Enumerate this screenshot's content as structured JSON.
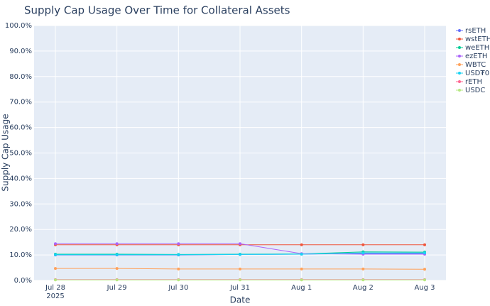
{
  "chart_data": {
    "type": "line",
    "title": "Supply Cap Usage Over Time for Collateral Assets",
    "x_label": "Date",
    "y_label": "Supply Cap Usage",
    "x": [
      "2025-07-28",
      "2025-07-29",
      "2025-07-30",
      "2025-07-31",
      "2025-08-01",
      "2025-08-02",
      "2025-08-03"
    ],
    "xticks": [
      {
        "value": "2025-07-28",
        "label": "Jul 28"
      },
      {
        "value": "2025-07-29",
        "label": "Jul 29"
      },
      {
        "value": "2025-07-30",
        "label": "Jul 30"
      },
      {
        "value": "2025-07-31",
        "label": "Jul 31"
      },
      {
        "value": "2025-08-01",
        "label": "Aug 1"
      },
      {
        "value": "2025-08-02",
        "label": "Aug 2"
      },
      {
        "value": "2025-08-03",
        "label": "Aug 3"
      }
    ],
    "x_year_label": "2025",
    "ylim": [
      0,
      100
    ],
    "yticks": [
      {
        "value": 0,
        "label": "0.0%"
      },
      {
        "value": 10,
        "label": "10.0%"
      },
      {
        "value": 20,
        "label": "20.0%"
      },
      {
        "value": 30,
        "label": "30.0%"
      },
      {
        "value": 40,
        "label": "40.0%"
      },
      {
        "value": 50,
        "label": "50.0%"
      },
      {
        "value": 60,
        "label": "60.0%"
      },
      {
        "value": 70,
        "label": "70.0%"
      },
      {
        "value": 80,
        "label": "80.0%"
      },
      {
        "value": 90,
        "label": "90.0%"
      },
      {
        "value": 100,
        "label": "100.0%"
      }
    ],
    "grid": true,
    "legend": "right",
    "series": [
      {
        "name": "rsETH",
        "color": "#636efa",
        "values": [
          10.0,
          10.0,
          10.0,
          10.2,
          10.3,
          10.6,
          10.6
        ]
      },
      {
        "name": "wstETH",
        "color": "#EF553B",
        "values": [
          14.0,
          14.0,
          14.0,
          14.0,
          14.0,
          14.0,
          14.0
        ]
      },
      {
        "name": "weETH",
        "color": "#00cc96",
        "values": [
          10.3,
          10.3,
          10.2,
          10.3,
          10.4,
          11.2,
          11.1
        ]
      },
      {
        "name": "ezETH",
        "color": "#ab63fa",
        "values": [
          14.4,
          14.4,
          14.4,
          14.4,
          10.5,
          10.3,
          10.3
        ]
      },
      {
        "name": "WBTC",
        "color": "#FFA15A",
        "values": [
          4.7,
          4.7,
          4.5,
          4.5,
          4.5,
          4.5,
          4.4
        ]
      },
      {
        "name": "USD₮0",
        "color": "#19d3f3",
        "values": [
          10.1,
          10.1,
          10.1,
          10.2,
          10.3,
          10.8,
          10.8
        ]
      },
      {
        "name": "rETH",
        "color": "#FF6692",
        "values": [
          0.3,
          0.3,
          0.3,
          0.3,
          0.3,
          0.3,
          0.3
        ]
      },
      {
        "name": "USDC",
        "color": "#B6E880",
        "values": [
          0.2,
          0.2,
          0.2,
          0.2,
          0.2,
          0.2,
          0.2
        ]
      }
    ]
  }
}
